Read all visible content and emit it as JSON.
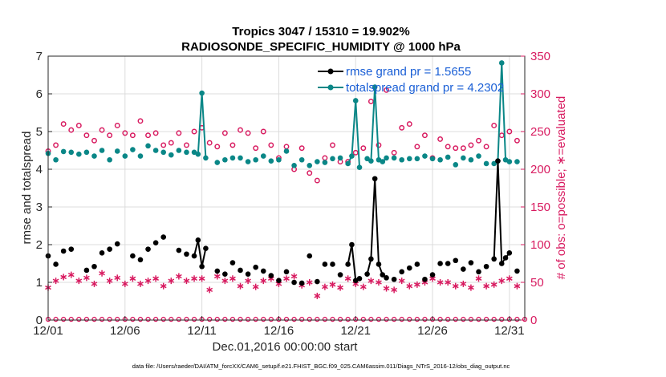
{
  "chart_data": {
    "type": "line",
    "title": "Tropics 3047 / 15310 = 19.902%",
    "subtitle": "RADIOSONDE_SPECIFIC_HUMIDITY @ 1000 hPa",
    "xlabel": "Dec.01,2016 00:00:00 start",
    "ylabel_left": "rmse and totalspread",
    "ylabel_right": "# of obs: o=possible; ∗=evaluated",
    "footnote": "data file: /Users/raeder/DAI/ATM_forcXX/CAM6_setup/f.e21.FHIST_BGC.f09_025.CAM6assim.011/Diags_NTrS_2016-12/obs_diag_output.nc",
    "xlim": [
      0,
      31
    ],
    "ylim_left": [
      0,
      7
    ],
    "ylim_right": [
      0,
      350
    ],
    "x_ticks": [
      0,
      5,
      10,
      15,
      20,
      25,
      30
    ],
    "x_tick_labels": [
      "12/01",
      "12/06",
      "12/11",
      "12/16",
      "12/21",
      "12/26",
      "12/31"
    ],
    "y_ticks_left": [
      0,
      1,
      2,
      3,
      4,
      5,
      6,
      7
    ],
    "y_ticks_right": [
      0,
      50,
      100,
      150,
      200,
      250,
      300,
      350
    ],
    "colors": {
      "rmse": "#000000",
      "spread": "#0a8787",
      "obs": "#d81b60"
    },
    "legend": {
      "position": "top-right",
      "entries": [
        "rmse grand pr = 1.5655",
        "totalspread grand pr = 4.2302"
      ]
    },
    "series": [
      {
        "name": "rmse",
        "x": [
          0,
          0.5,
          1,
          1.5,
          2.5,
          3,
          3.5,
          4,
          4.5,
          5.5,
          6,
          6.5,
          7,
          7.5,
          8.5,
          9,
          9.5,
          9.75,
          10,
          10.25,
          11,
          11.5,
          12,
          12.5,
          13,
          13.5,
          14,
          14.5,
          15,
          15.5,
          16,
          16.5,
          17,
          17.5,
          18,
          18.5,
          19,
          19.5,
          19.75,
          20,
          20.25,
          20.75,
          21,
          21.25,
          21.5,
          21.75,
          22,
          22.5,
          23,
          23.5,
          24,
          24.5,
          25,
          25.5,
          26,
          26.5,
          27,
          27.5,
          28,
          28.5,
          29,
          29.25,
          29.5,
          29.75,
          30,
          30.5
        ],
        "y": [
          1.7,
          1.48,
          1.83,
          1.88,
          1.32,
          1.42,
          1.78,
          1.88,
          2.02,
          1.7,
          1.6,
          1.88,
          2.05,
          2.2,
          1.85,
          1.75,
          1.7,
          2.12,
          1.42,
          1.9,
          1.3,
          1.22,
          1.52,
          1.32,
          1.22,
          1.4,
          1.3,
          1.18,
          1.05,
          1.28,
          1.0,
          0.98,
          1.7,
          1.02,
          1.48,
          1.48,
          1.2,
          1.48,
          2.0,
          1.05,
          1.1,
          1.22,
          1.62,
          3.75,
          1.48,
          1.2,
          1.12,
          1.08,
          1.28,
          1.38,
          1.48,
          1.08,
          1.2,
          1.5,
          1.5,
          1.58,
          1.35,
          1.52,
          1.28,
          1.42,
          1.62,
          4.22,
          1.5,
          1.65,
          1.78,
          1.3
        ]
      },
      {
        "name": "totalspread",
        "x": [
          0,
          0.5,
          1,
          1.5,
          2,
          2.5,
          3,
          3.5,
          4,
          4.5,
          5,
          5.5,
          6,
          6.5,
          7,
          7.5,
          8,
          8.5,
          9,
          9.5,
          9.75,
          10,
          10.25,
          11,
          11.5,
          12,
          12.5,
          13,
          13.5,
          14,
          14.5,
          15,
          15.5,
          16,
          16.5,
          17,
          17.5,
          18,
          18.5,
          19,
          19.5,
          19.75,
          20,
          20.25,
          20.75,
          21,
          21.25,
          21.5,
          21.75,
          22,
          22.5,
          23,
          23.5,
          24,
          24.5,
          25,
          25.5,
          26,
          26.5,
          27,
          27.5,
          28,
          28.5,
          29,
          29.25,
          29.5,
          29.75,
          30,
          30.5
        ],
        "y": [
          4.42,
          4.25,
          4.47,
          4.45,
          4.4,
          4.45,
          4.35,
          4.5,
          4.25,
          4.48,
          4.35,
          4.52,
          4.35,
          4.62,
          4.5,
          4.45,
          4.38,
          4.5,
          4.45,
          4.45,
          4.4,
          6.02,
          4.3,
          4.18,
          4.25,
          4.3,
          4.3,
          4.2,
          4.25,
          4.35,
          4.22,
          4.25,
          4.48,
          4.1,
          4.25,
          4.1,
          4.2,
          4.18,
          4.28,
          4.3,
          4.15,
          4.35,
          5.82,
          4.05,
          4.28,
          4.22,
          6.18,
          4.25,
          4.2,
          4.3,
          4.3,
          4.25,
          4.28,
          4.28,
          4.35,
          4.28,
          4.25,
          4.32,
          4.12,
          4.3,
          4.25,
          4.35,
          4.15,
          4.15,
          4.22,
          6.82,
          4.25,
          4.2,
          4.2
        ]
      },
      {
        "name": "obs possible",
        "x": [
          0,
          0.5,
          1,
          1.5,
          2,
          2.5,
          3,
          3.5,
          4,
          4.5,
          5,
          5.5,
          6,
          6.5,
          7,
          7.5,
          8,
          8.5,
          9,
          9.5,
          10,
          10.5,
          11,
          11.5,
          12,
          12.5,
          13,
          13.5,
          14,
          14.5,
          15,
          15.5,
          16,
          16.5,
          17,
          17.5,
          18,
          18.5,
          19,
          19.5,
          20,
          20.5,
          21,
          21.5,
          22,
          22.5,
          23,
          23.5,
          24,
          24.5,
          25,
          25.5,
          26,
          26.5,
          27,
          27.5,
          28,
          28.5,
          29,
          29.5,
          30,
          30.5
        ],
        "y": [
          224,
          232,
          260,
          252,
          258,
          245,
          238,
          252,
          245,
          258,
          248,
          245,
          264,
          245,
          248,
          232,
          235,
          248,
          232,
          250,
          255,
          235,
          230,
          248,
          232,
          252,
          248,
          228,
          250,
          232,
          215,
          230,
          200,
          228,
          195,
          185,
          215,
          232,
          210,
          210,
          222,
          228,
          290,
          232,
          305,
          222,
          255,
          260,
          230,
          245,
          215,
          240,
          230,
          228,
          228,
          232,
          238,
          230,
          258,
          245,
          250,
          238
        ]
      },
      {
        "name": "obs evaluated",
        "x": [
          0,
          0.5,
          1,
          1.5,
          2,
          2.5,
          3,
          3.5,
          4,
          4.5,
          5,
          5.5,
          6,
          6.5,
          7,
          7.5,
          8,
          8.5,
          9,
          9.5,
          10,
          10.5,
          11,
          11.5,
          12,
          12.5,
          13,
          13.5,
          14,
          14.5,
          15,
          15.5,
          16,
          16.5,
          17,
          17.5,
          18,
          18.5,
          19,
          19.5,
          20,
          20.5,
          21,
          21.5,
          22,
          22.5,
          23,
          23.5,
          24,
          24.5,
          25,
          25.5,
          26,
          26.5,
          27,
          27.5,
          28,
          28.5,
          29,
          29.5,
          30,
          30.5
        ],
        "y": [
          43,
          52,
          57,
          60,
          52,
          56,
          48,
          62,
          52,
          56,
          48,
          55,
          48,
          52,
          55,
          45,
          52,
          58,
          52,
          55,
          55,
          40,
          58,
          52,
          55,
          45,
          52,
          44,
          52,
          55,
          48,
          55,
          58,
          46,
          50,
          32,
          44,
          47,
          43,
          55,
          48,
          44,
          52,
          50,
          42,
          40,
          52,
          45,
          47,
          50,
          55,
          50,
          50,
          45,
          48,
          43,
          55,
          45,
          47,
          52,
          55,
          45
        ]
      }
    ]
  }
}
